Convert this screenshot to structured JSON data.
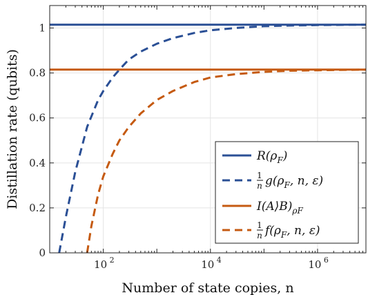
{
  "chart_data": {
    "type": "line",
    "xscale": "log",
    "xlim": [
      10,
      8000000
    ],
    "ylim": [
      0,
      1.1
    ],
    "grid": true,
    "legend_position": "bottom-right",
    "xlabel": "Number of state copies, n",
    "ylabel": "Distillation rate (qubits)",
    "xticks": [
      {
        "value": 100,
        "base": "10",
        "exp": "2"
      },
      {
        "value": 10000,
        "base": "10",
        "exp": "4"
      },
      {
        "value": 1000000,
        "base": "10",
        "exp": "6"
      }
    ],
    "yticks": [
      {
        "value": 0,
        "label": "0"
      },
      {
        "value": 0.2,
        "label": "0.2"
      },
      {
        "value": 0.4,
        "label": "0.4"
      },
      {
        "value": 0.6,
        "label": "0.6"
      },
      {
        "value": 0.8,
        "label": "0.8"
      },
      {
        "value": 1.0,
        "label": "1"
      }
    ],
    "series": [
      {
        "name": "R(ρ_F)",
        "color": "#2a4f95",
        "style": "solid",
        "x": [
          10,
          8000000
        ],
        "y": [
          1.015,
          1.015
        ]
      },
      {
        "name": "(1/n) g(ρ_F, n, ε)",
        "color": "#2a4f95",
        "style": "dashed",
        "x": [
          15,
          20,
          30,
          50,
          80,
          100,
          150,
          200,
          300,
          500,
          1000,
          2000,
          5000,
          10000,
          30000,
          100000,
          300000,
          1000000,
          8000000
        ],
        "y": [
          0.0,
          0.16,
          0.36,
          0.56,
          0.68,
          0.72,
          0.78,
          0.815,
          0.86,
          0.895,
          0.93,
          0.955,
          0.978,
          0.99,
          1.0,
          1.008,
          1.011,
          1.013,
          1.015
        ]
      },
      {
        "name": "I(A⟩B)_ρF",
        "color": "#c55a11",
        "style": "solid",
        "x": [
          10,
          8000000
        ],
        "y": [
          0.815,
          0.815
        ]
      },
      {
        "name": "(1/n) f(ρ_F, n, ε)",
        "color": "#c55a11",
        "style": "dashed",
        "x": [
          50,
          60,
          80,
          100,
          150,
          200,
          300,
          500,
          1000,
          2000,
          5000,
          10000,
          30000,
          100000,
          300000,
          1000000,
          8000000
        ],
        "y": [
          0.0,
          0.12,
          0.26,
          0.34,
          0.44,
          0.5,
          0.56,
          0.62,
          0.68,
          0.72,
          0.76,
          0.78,
          0.795,
          0.805,
          0.81,
          0.812,
          0.815
        ]
      }
    ],
    "legend": [
      {
        "main": "R(ρ",
        "sub": "F",
        "tail": ")"
      },
      {
        "frac": true,
        "main": "g(ρ",
        "sub": "F",
        "tail": ", n, ε)"
      },
      {
        "main": "I(A⟩B)",
        "sub": "ρF",
        "tail": ""
      },
      {
        "frac": true,
        "main": "f(ρ",
        "sub": "F",
        "tail": ", n, ε)"
      }
    ]
  }
}
